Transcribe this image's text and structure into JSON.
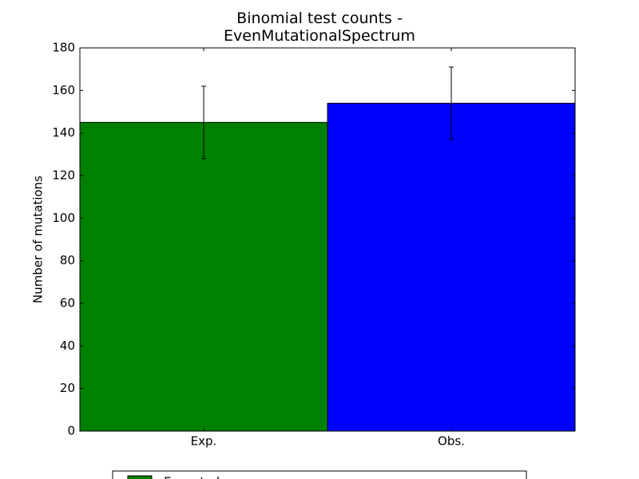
{
  "chart_data": {
    "type": "bar",
    "title": "Binomial test counts -\nEvenMutationalSpectrum",
    "y_label": "Number of mutations",
    "categories": [
      "Exp.",
      "Obs."
    ],
    "values": [
      145,
      154
    ],
    "errors": [
      17,
      17
    ],
    "colors": [
      "#008000",
      "#0000ff"
    ],
    "ylim": [
      0,
      180
    ],
    "yticks": [
      0,
      20,
      40,
      60,
      80,
      100,
      120,
      140,
      160,
      180
    ],
    "legend": [
      "Expected"
    ],
    "legend_position": "bottom"
  }
}
